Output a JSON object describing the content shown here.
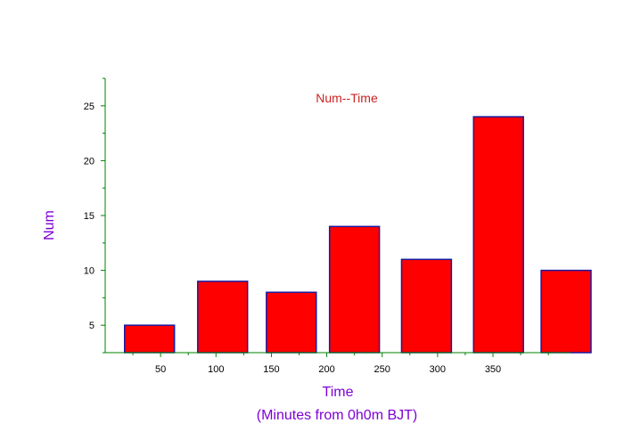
{
  "chart_data": {
    "type": "bar",
    "title": "Num--Time",
    "xlabel": "Time",
    "xlabel_sub": "(Minutes from 0h0m BJT)",
    "ylabel": "Num",
    "x": [
      40,
      106,
      168,
      225,
      290,
      355,
      416
    ],
    "values": [
      5,
      9,
      8,
      14,
      11,
      24,
      10
    ],
    "bar_width": 45,
    "xlim": [
      0,
      420
    ],
    "ylim": [
      2.5,
      27.5
    ],
    "xticks": [
      50,
      100,
      150,
      200,
      250,
      300,
      350
    ],
    "yticks": [
      5,
      10,
      15,
      20,
      25
    ],
    "grid": false,
    "legend": "none",
    "colors": {
      "bar_fill": "#ff0000",
      "bar_edge": "#1a1aa0",
      "axis": "#008000",
      "title": "#cc2222",
      "axis_title": "#7f00d4"
    }
  }
}
